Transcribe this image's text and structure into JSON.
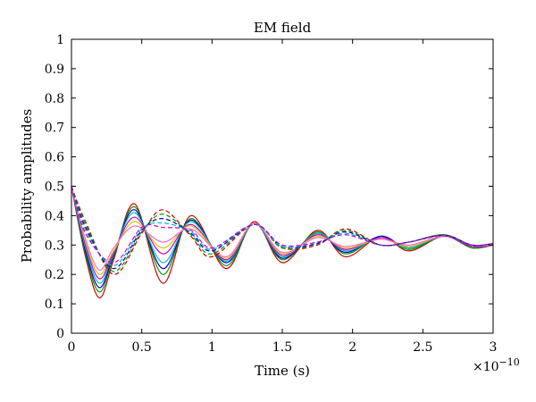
{
  "chart_data": {
    "type": "line",
    "title": "EM field",
    "xlabel": "Time (s)",
    "ylabel": "Probability amplitudes",
    "x_multiplier_label": "×10",
    "x_multiplier_exponent": "−10",
    "xlim": [
      0,
      3
    ],
    "ylim": [
      0,
      1
    ],
    "x_ticks": [
      0,
      0.5,
      1,
      1.5,
      2,
      2.5,
      3
    ],
    "x_tick_labels": [
      "0",
      "0.5",
      "1",
      "1.5",
      "2",
      "2.5",
      "3"
    ],
    "y_ticks": [
      0,
      0.1,
      0.2,
      0.3,
      0.4,
      0.5,
      0.6,
      0.7,
      0.8,
      0.9,
      1
    ],
    "y_tick_labels": [
      "0",
      "0.1",
      "0.2",
      "0.3",
      "0.4",
      "0.5",
      "0.6",
      "0.7",
      "0.8",
      "0.9",
      "1"
    ],
    "grid": false,
    "legend": "none",
    "series": [
      {
        "color": "#cc0000",
        "dash": false,
        "x": [
          0,
          0.1,
          0.2,
          0.3,
          0.45,
          0.65,
          0.85,
          1.1,
          1.3,
          1.5,
          1.75,
          1.95,
          2.2,
          2.4,
          2.65,
          2.85,
          3
        ],
        "y": [
          0.5,
          0.26,
          0.12,
          0.25,
          0.44,
          0.17,
          0.4,
          0.22,
          0.38,
          0.24,
          0.35,
          0.26,
          0.33,
          0.28,
          0.33,
          0.29,
          0.3
        ]
      },
      {
        "color": "#009900",
        "dash": false,
        "x": [
          0,
          0.1,
          0.2,
          0.3,
          0.45,
          0.65,
          0.85,
          1.1,
          1.3,
          1.5,
          1.75,
          1.95,
          2.2,
          2.4,
          2.65,
          2.85,
          3
        ],
        "y": [
          0.5,
          0.27,
          0.14,
          0.26,
          0.43,
          0.2,
          0.39,
          0.23,
          0.375,
          0.25,
          0.345,
          0.27,
          0.33,
          0.285,
          0.33,
          0.29,
          0.3
        ]
      },
      {
        "color": "#0000cc",
        "dash": false,
        "x": [
          0,
          0.1,
          0.2,
          0.3,
          0.45,
          0.65,
          0.85,
          1.1,
          1.3,
          1.5,
          1.75,
          1.95,
          2.2,
          2.4,
          2.65,
          2.85,
          3
        ],
        "y": [
          0.5,
          0.28,
          0.155,
          0.265,
          0.42,
          0.22,
          0.385,
          0.24,
          0.375,
          0.255,
          0.34,
          0.275,
          0.33,
          0.29,
          0.33,
          0.295,
          0.3
        ]
      },
      {
        "color": "#00bbbb",
        "dash": false,
        "x": [
          0,
          0.1,
          0.2,
          0.3,
          0.45,
          0.65,
          0.85,
          1.1,
          1.3,
          1.5,
          1.75,
          1.95,
          2.2,
          2.4,
          2.65,
          2.85,
          3
        ],
        "y": [
          0.5,
          0.29,
          0.17,
          0.27,
          0.41,
          0.24,
          0.38,
          0.245,
          0.375,
          0.26,
          0.34,
          0.28,
          0.325,
          0.29,
          0.33,
          0.295,
          0.3
        ]
      },
      {
        "color": "#cc00cc",
        "dash": false,
        "x": [
          0,
          0.1,
          0.2,
          0.3,
          0.45,
          0.65,
          0.85,
          1.1,
          1.3,
          1.5,
          1.75,
          1.95,
          2.2,
          2.4,
          2.65,
          2.85,
          3
        ],
        "y": [
          0.5,
          0.3,
          0.185,
          0.275,
          0.395,
          0.27,
          0.37,
          0.25,
          0.375,
          0.265,
          0.335,
          0.285,
          0.325,
          0.295,
          0.33,
          0.295,
          0.3
        ]
      },
      {
        "color": "#cccc00",
        "dash": false,
        "x": [
          0,
          0.1,
          0.2,
          0.3,
          0.45,
          0.65,
          0.85,
          1.1,
          1.3,
          1.5,
          1.75,
          1.95,
          2.2,
          2.4,
          2.65,
          2.85,
          3
        ],
        "y": [
          0.5,
          0.31,
          0.2,
          0.28,
          0.38,
          0.29,
          0.365,
          0.255,
          0.375,
          0.27,
          0.33,
          0.29,
          0.32,
          0.295,
          0.33,
          0.3,
          0.3
        ]
      },
      {
        "color": "#ff66cc",
        "dash": false,
        "x": [
          0,
          0.1,
          0.2,
          0.3,
          0.45,
          0.65,
          0.85,
          1.1,
          1.3,
          1.5,
          1.75,
          1.95,
          2.2,
          2.4,
          2.65,
          2.85,
          3
        ],
        "y": [
          0.5,
          0.32,
          0.215,
          0.29,
          0.365,
          0.31,
          0.355,
          0.26,
          0.375,
          0.275,
          0.325,
          0.295,
          0.32,
          0.3,
          0.33,
          0.3,
          0.3
        ]
      },
      {
        "color": "#cc0000",
        "dash": true,
        "x": [
          0,
          0.1,
          0.3,
          0.5,
          0.65,
          0.85,
          1.0,
          1.3,
          1.5,
          1.75,
          1.95,
          2.2,
          2.4,
          2.65,
          2.85,
          3
        ],
        "y": [
          0.5,
          0.38,
          0.2,
          0.34,
          0.42,
          0.33,
          0.26,
          0.37,
          0.29,
          0.3,
          0.355,
          0.3,
          0.31,
          0.335,
          0.3,
          0.305
        ]
      },
      {
        "color": "#009900",
        "dash": true,
        "x": [
          0,
          0.1,
          0.3,
          0.5,
          0.65,
          0.85,
          1.0,
          1.3,
          1.5,
          1.75,
          1.95,
          2.2,
          2.4,
          2.65,
          2.85,
          3
        ],
        "y": [
          0.5,
          0.37,
          0.21,
          0.345,
          0.405,
          0.335,
          0.27,
          0.37,
          0.29,
          0.305,
          0.35,
          0.3,
          0.31,
          0.335,
          0.3,
          0.305
        ]
      },
      {
        "color": "#0000cc",
        "dash": true,
        "x": [
          0,
          0.1,
          0.3,
          0.5,
          0.65,
          0.85,
          1.0,
          1.3,
          1.5,
          1.75,
          1.95,
          2.2,
          2.4,
          2.65,
          2.85,
          3
        ],
        "y": [
          0.5,
          0.36,
          0.22,
          0.35,
          0.39,
          0.34,
          0.28,
          0.37,
          0.295,
          0.305,
          0.345,
          0.3,
          0.31,
          0.333,
          0.3,
          0.305
        ]
      },
      {
        "color": "#00bbbb",
        "dash": true,
        "x": [
          0,
          0.1,
          0.3,
          0.5,
          0.65,
          0.85,
          1.0,
          1.3,
          1.5,
          1.75,
          1.95,
          2.2,
          2.4,
          2.65,
          2.85,
          3
        ],
        "y": [
          0.5,
          0.35,
          0.23,
          0.355,
          0.375,
          0.345,
          0.285,
          0.37,
          0.295,
          0.31,
          0.34,
          0.3,
          0.31,
          0.332,
          0.3,
          0.305
        ]
      },
      {
        "color": "#cc00cc",
        "dash": true,
        "x": [
          0,
          0.1,
          0.3,
          0.5,
          0.65,
          0.85,
          1.0,
          1.3,
          1.5,
          1.75,
          1.95,
          2.2,
          2.4,
          2.65,
          2.85,
          3
        ],
        "y": [
          0.5,
          0.34,
          0.24,
          0.36,
          0.36,
          0.35,
          0.29,
          0.37,
          0.3,
          0.31,
          0.335,
          0.3,
          0.31,
          0.331,
          0.3,
          0.305
        ]
      }
    ]
  }
}
